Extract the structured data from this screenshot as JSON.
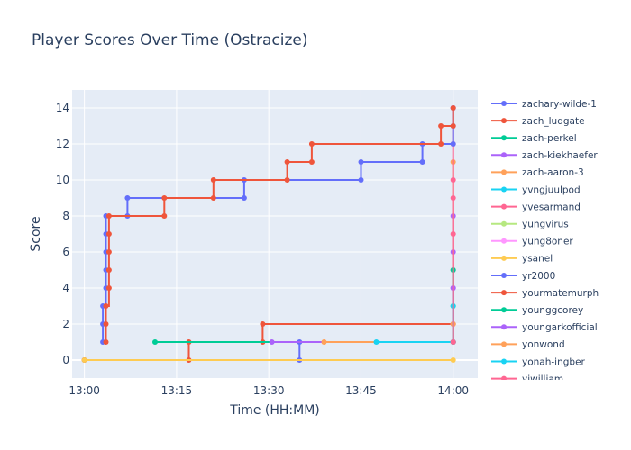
{
  "chart_data": {
    "type": "line",
    "line_shape": "step",
    "title": "Player Scores Over Time (Ostracize)",
    "xlabel": "Time (HH:MM)",
    "ylabel": "Score",
    "x_range": [
      "12:58",
      "14:04"
    ],
    "ylim": [
      -1,
      15
    ],
    "x_ticks": [
      "13:00",
      "13:15",
      "13:30",
      "13:45",
      "14:00"
    ],
    "y_ticks": [
      0,
      2,
      4,
      6,
      8,
      10,
      12,
      14
    ],
    "grid": true,
    "legend_position": "right",
    "series": [
      {
        "name": "zachary-wilde-1",
        "color": "#636efa",
        "points": [
          [
            "13:00",
            0
          ],
          [
            "13:35",
            0
          ],
          [
            "13:35",
            1
          ],
          [
            "14:00",
            1
          ]
        ]
      },
      {
        "name": "zach_ludgate",
        "color": "#ef553b",
        "points": [
          [
            "13:00",
            0
          ],
          [
            "13:17",
            0
          ],
          [
            "13:17",
            1
          ],
          [
            "13:29",
            1
          ],
          [
            "13:29",
            2
          ],
          [
            "14:00",
            2
          ]
        ]
      },
      {
        "name": "zach-perkel",
        "color": "#00cc96",
        "points": [
          [
            "13:11.5",
            1
          ],
          [
            "14:00",
            1
          ]
        ]
      },
      {
        "name": "zach-kiekhaefer",
        "color": "#ab63fa",
        "points": [
          [
            "13:30.5",
            1
          ],
          [
            "14:00",
            1
          ],
          [
            "14:00",
            4
          ],
          [
            "14:00",
            6
          ],
          [
            "14:00",
            8
          ]
        ]
      },
      {
        "name": "zach-aaron-3",
        "color": "#ffa15a",
        "points": [
          [
            "13:39",
            1
          ],
          [
            "14:00",
            1
          ],
          [
            "14:00",
            2
          ],
          [
            "14:00",
            11
          ]
        ]
      },
      {
        "name": "yvngjuulpod",
        "color": "#19d3f3",
        "points": [
          [
            "13:47.5",
            1
          ],
          [
            "14:00",
            1
          ],
          [
            "14:00",
            3
          ]
        ]
      },
      {
        "name": "yvesarmand",
        "color": "#ff6692",
        "points": [
          [
            "14:00",
            1
          ],
          [
            "14:00",
            5
          ],
          [
            "14:00",
            7
          ],
          [
            "14:00",
            10
          ],
          [
            "14:00",
            12
          ],
          [
            "14:00",
            14
          ]
        ]
      },
      {
        "name": "yungvirus",
        "color": "#b6e880",
        "points": [
          [
            "14:00",
            1
          ],
          [
            "14:00",
            3
          ]
        ]
      },
      {
        "name": "yung8oner",
        "color": "#ff97ff",
        "points": [
          [
            "14:00",
            1
          ],
          [
            "14:00",
            2
          ]
        ]
      },
      {
        "name": "ysanel",
        "color": "#fecb52",
        "points": [
          [
            "13:00",
            0
          ],
          [
            "14:00",
            0
          ]
        ]
      },
      {
        "name": "yr2000",
        "color": "#636efa",
        "points": [
          [
            "13:03",
            1
          ],
          [
            "13:03",
            2
          ],
          [
            "13:03",
            3
          ],
          [
            "13:03.5",
            4
          ],
          [
            "13:03.5",
            5
          ],
          [
            "13:03.5",
            6
          ],
          [
            "13:03.5",
            7
          ],
          [
            "13:03.5",
            8
          ],
          [
            "13:07",
            8
          ],
          [
            "13:07",
            9
          ],
          [
            "13:26",
            9
          ],
          [
            "13:26",
            10
          ],
          [
            "13:45",
            10
          ],
          [
            "13:45",
            11
          ],
          [
            "13:55",
            11
          ],
          [
            "13:55",
            12
          ],
          [
            "14:00",
            12
          ],
          [
            "14:00",
            13
          ],
          [
            "14:00",
            14
          ]
        ]
      },
      {
        "name": "yourmatemurph",
        "color": "#ef553b",
        "points": [
          [
            "13:03.5",
            1
          ],
          [
            "13:03.5",
            2
          ],
          [
            "13:03.5",
            3
          ],
          [
            "13:04",
            4
          ],
          [
            "13:04",
            5
          ],
          [
            "13:04",
            6
          ],
          [
            "13:04",
            7
          ],
          [
            "13:04",
            8
          ],
          [
            "13:13",
            8
          ],
          [
            "13:13",
            9
          ],
          [
            "13:21",
            9
          ],
          [
            "13:21",
            10
          ],
          [
            "13:33",
            10
          ],
          [
            "13:33",
            11
          ],
          [
            "13:37",
            11
          ],
          [
            "13:37",
            12
          ],
          [
            "13:58",
            12
          ],
          [
            "13:58",
            13
          ],
          [
            "14:00",
            13
          ],
          [
            "14:00",
            14
          ]
        ]
      },
      {
        "name": "younggcorey",
        "color": "#00cc96",
        "points": [
          [
            "14:00",
            1
          ],
          [
            "14:00",
            5
          ]
        ]
      },
      {
        "name": "youngarkofficial",
        "color": "#ab63fa",
        "points": [
          [
            "14:00",
            1
          ],
          [
            "14:00",
            4
          ]
        ]
      },
      {
        "name": "yonwond",
        "color": "#ffa15a",
        "points": [
          [
            "14:00",
            1
          ],
          [
            "14:00",
            2
          ]
        ]
      },
      {
        "name": "yonah-ingber",
        "color": "#19d3f3",
        "points": [
          [
            "14:00",
            1
          ],
          [
            "14:00",
            3
          ]
        ]
      },
      {
        "name": "yiwilliam",
        "color": "#ff6692",
        "points": [
          [
            "14:00",
            1
          ],
          [
            "14:00",
            9
          ]
        ]
      }
    ]
  }
}
